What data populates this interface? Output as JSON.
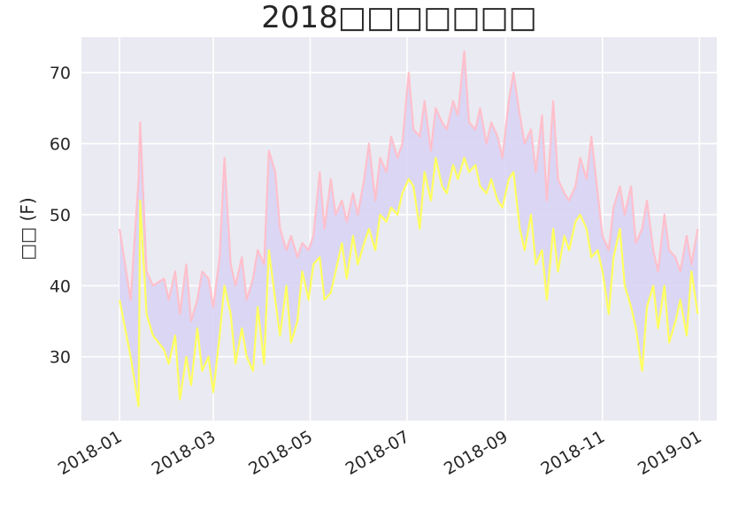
{
  "chart_data": {
    "type": "area",
    "title": "2018□□□□□□□",
    "xlabel": "",
    "ylabel": "□□ (F)",
    "xlim": [
      "2017-12-08",
      "2019-01-12"
    ],
    "ylim": [
      21,
      75
    ],
    "yticks": [
      30,
      40,
      50,
      60,
      70
    ],
    "xticks": [
      "2018-01",
      "2018-03",
      "2018-05",
      "2018-07",
      "2018-09",
      "2018-11",
      "2019-01"
    ],
    "grid": true,
    "background": "#eaeaf2",
    "colors": {
      "high": "#ffc0cb",
      "low": "#ffff60",
      "fill": "#d8d4f4"
    },
    "dates": [
      "2018-01-01",
      "2018-01-08",
      "2018-01-13",
      "2018-01-14",
      "2018-01-18",
      "2018-01-22",
      "2018-01-29",
      "2018-02-01",
      "2018-02-05",
      "2018-02-08",
      "2018-02-12",
      "2018-02-15",
      "2018-02-19",
      "2018-02-22",
      "2018-02-26",
      "2018-03-01",
      "2018-03-05",
      "2018-03-08",
      "2018-03-12",
      "2018-03-15",
      "2018-03-19",
      "2018-03-22",
      "2018-03-26",
      "2018-03-29",
      "2018-04-02",
      "2018-04-05",
      "2018-04-09",
      "2018-04-12",
      "2018-04-16",
      "2018-04-19",
      "2018-04-23",
      "2018-04-26",
      "2018-04-30",
      "2018-05-03",
      "2018-05-07",
      "2018-05-10",
      "2018-05-14",
      "2018-05-17",
      "2018-05-21",
      "2018-05-24",
      "2018-05-28",
      "2018-05-31",
      "2018-06-04",
      "2018-06-07",
      "2018-06-11",
      "2018-06-14",
      "2018-06-18",
      "2018-06-21",
      "2018-06-25",
      "2018-06-28",
      "2018-07-02",
      "2018-07-05",
      "2018-07-09",
      "2018-07-12",
      "2018-07-16",
      "2018-07-19",
      "2018-07-23",
      "2018-07-26",
      "2018-07-30",
      "2018-08-02",
      "2018-08-06",
      "2018-08-09",
      "2018-08-13",
      "2018-08-16",
      "2018-08-20",
      "2018-08-23",
      "2018-08-27",
      "2018-08-30",
      "2018-09-03",
      "2018-09-06",
      "2018-09-10",
      "2018-09-13",
      "2018-09-17",
      "2018-09-20",
      "2018-09-24",
      "2018-09-27",
      "2018-10-01",
      "2018-10-04",
      "2018-10-08",
      "2018-10-11",
      "2018-10-15",
      "2018-10-18",
      "2018-10-22",
      "2018-10-25",
      "2018-10-29",
      "2018-11-01",
      "2018-11-05",
      "2018-11-08",
      "2018-11-12",
      "2018-11-15",
      "2018-11-19",
      "2018-11-22",
      "2018-11-26",
      "2018-11-29",
      "2018-12-03",
      "2018-12-06",
      "2018-12-10",
      "2018-12-13",
      "2018-12-17",
      "2018-12-20",
      "2018-12-24",
      "2018-12-27",
      "2018-12-31"
    ],
    "series": [
      {
        "name": "",
        "values": [
          48,
          38,
          55,
          63,
          42,
          40,
          41,
          38,
          42,
          36,
          43,
          35,
          38,
          42,
          41,
          37,
          44,
          58,
          43,
          40,
          44,
          38,
          41,
          45,
          43,
          59,
          56,
          48,
          45,
          47,
          44,
          46,
          45,
          47,
          56,
          48,
          55,
          50,
          52,
          49,
          53,
          50,
          55,
          60,
          52,
          58,
          56,
          61,
          58,
          60,
          70,
          62,
          61,
          66,
          59,
          65,
          63,
          62,
          66,
          64,
          73,
          63,
          62,
          65,
          60,
          63,
          61,
          58,
          66,
          70,
          64,
          60,
          62,
          56,
          64,
          52,
          66,
          55,
          53,
          52,
          54,
          58,
          55,
          61,
          53,
          47,
          45,
          51,
          54,
          50,
          54,
          46,
          48,
          52,
          45,
          42,
          50,
          45,
          44,
          42,
          47,
          43,
          48
        ]
      },
      {
        "name": "",
        "values": [
          38,
          30,
          23,
          52,
          36,
          33,
          31,
          29,
          33,
          24,
          30,
          26,
          34,
          28,
          30,
          25,
          33,
          40,
          36,
          29,
          34,
          30,
          28,
          37,
          29,
          45,
          38,
          33,
          40,
          32,
          35,
          42,
          38,
          43,
          44,
          38,
          39,
          42,
          46,
          41,
          47,
          43,
          46,
          48,
          45,
          50,
          49,
          51,
          50,
          53,
          55,
          54,
          48,
          56,
          52,
          58,
          54,
          53,
          57,
          55,
          58,
          56,
          57,
          54,
          53,
          55,
          52,
          51,
          55,
          56,
          48,
          45,
          50,
          43,
          45,
          38,
          48,
          42,
          47,
          45,
          49,
          50,
          48,
          44,
          45,
          42,
          36,
          44,
          48,
          40,
          37,
          34,
          28,
          37,
          40,
          34,
          40,
          32,
          35,
          38,
          33,
          42,
          36
        ]
      }
    ]
  }
}
